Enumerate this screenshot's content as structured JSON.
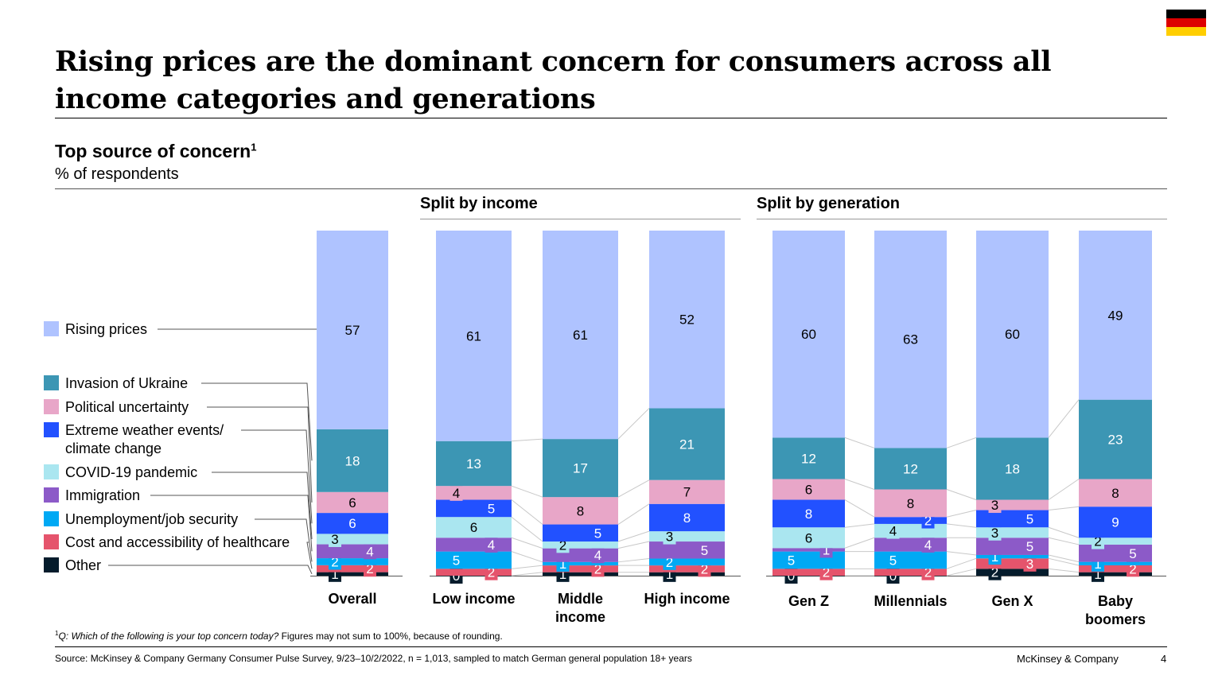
{
  "header": {
    "title": "Rising prices are the dominant concern for consumers across all income categories and generations"
  },
  "flag": {
    "colors": [
      "#000000",
      "#DD0000",
      "#FFCE00"
    ]
  },
  "subtitle": {
    "text": "Top source of concern",
    "sup": "1",
    "unit": "% of respondents"
  },
  "groups": {
    "income": "Split by income",
    "generation": "Split by generation"
  },
  "footnote": {
    "marker": "1",
    "question": "Q: Which of the following is your top concern today?",
    "note": " Figures may not sum to 100%, because of rounding."
  },
  "source": "Source: McKinsey & Company Germany Consumer Pulse Survey, 9/23–10/2/2022, n = 1,013, sampled to match German general population 18+ years",
  "brand": "McKinsey & Company",
  "page_number": "4",
  "chart_data": {
    "type": "bar",
    "stacked": true,
    "title": "Top source of concern",
    "ylabel": "% of respondents",
    "ylim": [
      0,
      100
    ],
    "categories": [
      [
        "Overall"
      ],
      [
        "Low income"
      ],
      [
        "Middle",
        "income"
      ],
      [
        "High income"
      ],
      [
        "Gen Z"
      ],
      [
        "Millennials"
      ],
      [
        "Gen X"
      ],
      [
        "Baby",
        "boomers"
      ]
    ],
    "series": [
      {
        "name": "Other",
        "color": "#051c2c",
        "values": [
          1,
          0,
          1,
          1,
          0,
          0,
          2,
          1
        ]
      },
      {
        "name": "Cost and accessibility of healthcare",
        "color": "#e5546c",
        "values": [
          2,
          2,
          2,
          2,
          2,
          2,
          3,
          2
        ]
      },
      {
        "name": "Unemployment/job security",
        "color": "#00a9f4",
        "values": [
          2,
          5,
          1,
          2,
          5,
          5,
          1,
          1
        ]
      },
      {
        "name": "Immigration",
        "color": "#8c5ac8",
        "values": [
          4,
          4,
          4,
          5,
          1,
          4,
          5,
          5
        ]
      },
      {
        "name": "COVID-19 pandemic",
        "color": "#aae6f0",
        "values": [
          3,
          6,
          2,
          3,
          6,
          4,
          3,
          2
        ]
      },
      {
        "name": "Extreme weather events/ climate change",
        "color": "#2251ff",
        "values": [
          6,
          5,
          5,
          8,
          8,
          2,
          5,
          9
        ]
      },
      {
        "name": "Political uncertainty",
        "color": "#e8a6c8",
        "values": [
          6,
          4,
          8,
          7,
          6,
          8,
          3,
          8
        ]
      },
      {
        "name": "Invasion of Ukraine",
        "color": "#3c96b4",
        "values": [
          18,
          13,
          17,
          21,
          12,
          12,
          18,
          23
        ]
      },
      {
        "name": "Rising prices",
        "color": "#afc3ff",
        "values": [
          57,
          61,
          61,
          52,
          60,
          63,
          60,
          49
        ]
      }
    ],
    "legend": {
      "position": "left",
      "labels": [
        [
          "Rising prices"
        ],
        [
          "Invasion of Ukraine"
        ],
        [
          "Political uncertainty"
        ],
        [
          "Extreme weather events/",
          "climate change"
        ],
        [
          "COVID-19 pandemic"
        ],
        [
          "Immigration"
        ],
        [
          "Unemployment/job security"
        ],
        [
          "Cost and accessibility of healthcare"
        ],
        [
          "Other"
        ]
      ],
      "colors": [
        "#afc3ff",
        "#3c96b4",
        "#e8a6c8",
        "#2251ff",
        "#aae6f0",
        "#8c5ac8",
        "#00a9f4",
        "#e5546c",
        "#051c2c"
      ]
    }
  }
}
